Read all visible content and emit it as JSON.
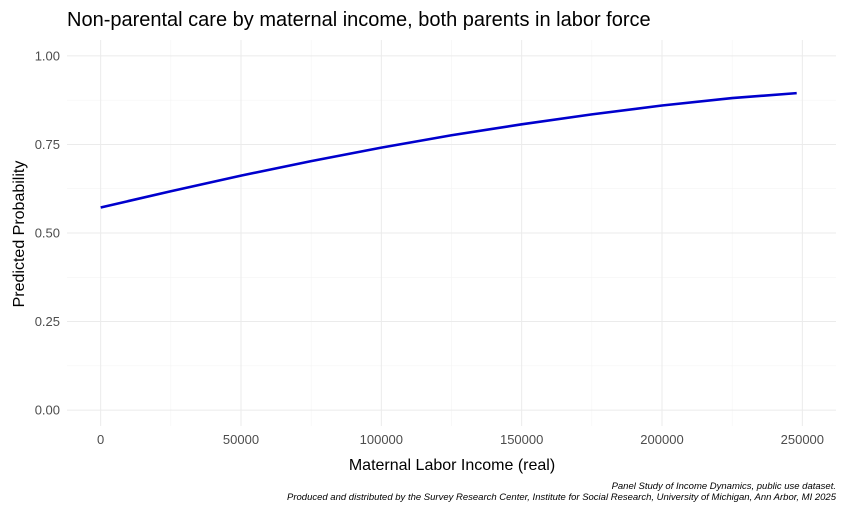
{
  "chart_data": {
    "type": "line",
    "title": "Non-parental care by maternal income, both parents in labor force",
    "xlabel": "Maternal Labor Income (real)",
    "ylabel": "Predicted Probability",
    "xlim": [
      -12000,
      262000
    ],
    "ylim": [
      -0.045,
      1.045
    ],
    "x_ticks": [
      0,
      50000,
      100000,
      150000,
      200000,
      250000
    ],
    "x_tick_labels": [
      "0",
      "50000",
      "100000",
      "150000",
      "200000",
      "250000"
    ],
    "y_ticks": [
      0,
      0.25,
      0.5,
      0.75,
      1
    ],
    "y_tick_labels": [
      "0.00",
      "0.25",
      "0.50",
      "0.75",
      "1.00"
    ],
    "grid": true,
    "legend": "none",
    "series": [
      {
        "color": "#0000cd",
        "x": [
          0,
          25000,
          50000,
          75000,
          100000,
          125000,
          150000,
          175000,
          200000,
          225000,
          248000
        ],
        "y": [
          0.572,
          0.618,
          0.662,
          0.703,
          0.741,
          0.776,
          0.807,
          0.835,
          0.86,
          0.881,
          0.895
        ]
      }
    ],
    "caption": [
      "Panel Study of Income Dynamics, public use dataset.",
      "Produced and distributed by the Survey Research Center, Institute for Social Research, University of Michigan, Ann Arbor, MI 2025"
    ]
  }
}
